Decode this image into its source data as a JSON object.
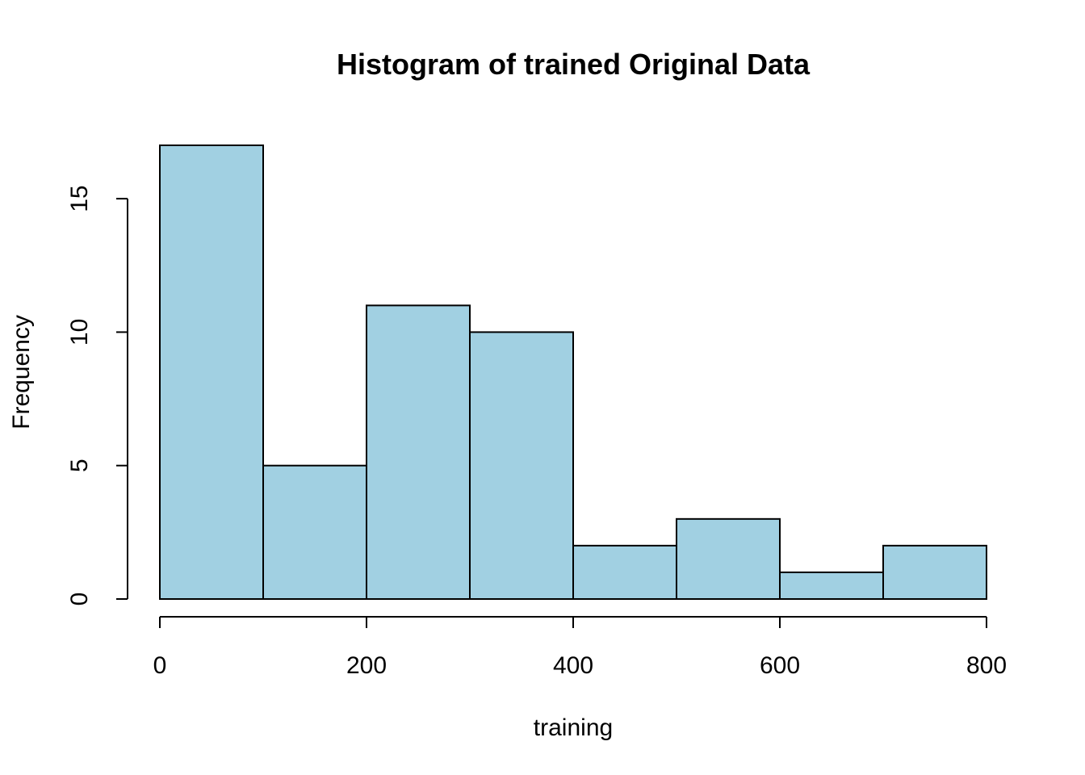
{
  "chart_data": {
    "type": "bar",
    "title": "Histogram of trained Original Data",
    "xlabel": "training",
    "ylabel": "Frequency",
    "bins": [
      {
        "start": 0,
        "end": 100,
        "count": 17
      },
      {
        "start": 100,
        "end": 200,
        "count": 5
      },
      {
        "start": 200,
        "end": 300,
        "count": 11
      },
      {
        "start": 300,
        "end": 400,
        "count": 10
      },
      {
        "start": 400,
        "end": 500,
        "count": 2
      },
      {
        "start": 500,
        "end": 600,
        "count": 3
      },
      {
        "start": 600,
        "end": 700,
        "count": 1
      },
      {
        "start": 700,
        "end": 800,
        "count": 2
      }
    ],
    "xlim": [
      0,
      800
    ],
    "ylim": [
      0,
      17
    ],
    "x_ticks": [
      {
        "value": 0,
        "label": "0"
      },
      {
        "value": 200,
        "label": "200"
      },
      {
        "value": 400,
        "label": "400"
      },
      {
        "value": 600,
        "label": "600"
      },
      {
        "value": 800,
        "label": "800"
      }
    ],
    "y_ticks": [
      {
        "value": 0,
        "label": "0"
      },
      {
        "value": 5,
        "label": "5"
      },
      {
        "value": 10,
        "label": "10"
      },
      {
        "value": 15,
        "label": "15"
      }
    ],
    "bar_color": "#a1d0e2",
    "grid": false
  }
}
